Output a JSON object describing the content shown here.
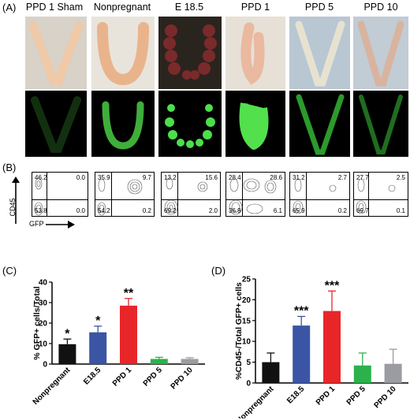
{
  "panel_a": {
    "label": "(A)",
    "columns": [
      "PPD 1 Sham",
      "Nonpregnant",
      "E 18.5",
      "PPD 1",
      "PPD 5",
      "PPD 10"
    ]
  },
  "panel_b": {
    "label": "(B)",
    "y_axis": "CD45",
    "x_axis": "GFP",
    "plots": [
      {
        "ul": "46.2",
        "ur": "0.0",
        "ll": "53.8",
        "lr": "0.0"
      },
      {
        "ul": "35.9",
        "ur": "9.7",
        "ll": "54.2",
        "lr": "0.2"
      },
      {
        "ul": "13.2",
        "ur": "15.6",
        "ll": "69.2",
        "lr": "2.0"
      },
      {
        "ul": "28.4",
        "ur": "28.6",
        "ll": "36.9",
        "lr": "6.1"
      },
      {
        "ul": "31.2",
        "ur": "2.7",
        "ll": "65.9",
        "lr": "0.2"
      },
      {
        "ul": "27.7",
        "ur": "2.5",
        "ll": "69.7",
        "lr": "0.1"
      }
    ]
  },
  "panel_c": {
    "label": "(C)"
  },
  "panel_d": {
    "label": "(D)"
  },
  "chart_data": [
    {
      "type": "bar",
      "ylabel": "% GFP+ cells/Total",
      "categories": [
        "Nonpregnant",
        "E18.5",
        "PPD 1",
        "PPD 5",
        "PPD 10"
      ],
      "values": [
        9.7,
        15.5,
        28.5,
        2.5,
        2.5
      ],
      "errors": [
        2.5,
        3.0,
        3.5,
        0.8,
        0.6
      ],
      "significance": [
        "*",
        "*",
        "**",
        "",
        ""
      ],
      "colors": [
        "#111111",
        "#3a55a4",
        "#e8262a",
        "#2bb24c",
        "#9b9ba2"
      ],
      "ylim": [
        0,
        40
      ],
      "yticks": [
        "0",
        "10",
        "20",
        "30",
        "40"
      ]
    },
    {
      "type": "bar",
      "ylabel": "%CD45-/Total GFP+ cells",
      "categories": [
        "Nonpregnant",
        "E18.5",
        "PPD 1",
        "PPD 5",
        "PPD 10"
      ],
      "values": [
        5.0,
        13.8,
        17.3,
        4.2,
        4.6
      ],
      "errors": [
        2.2,
        2.2,
        4.8,
        3.0,
        3.5
      ],
      "significance": [
        "",
        "***",
        "***",
        "",
        ""
      ],
      "colors": [
        "#111111",
        "#3a55a4",
        "#e8262a",
        "#2bb24c",
        "#9b9ba2"
      ],
      "ylim": [
        0,
        25
      ],
      "yticks": [
        "0",
        "5",
        "10",
        "15",
        "20",
        "25"
      ]
    }
  ]
}
